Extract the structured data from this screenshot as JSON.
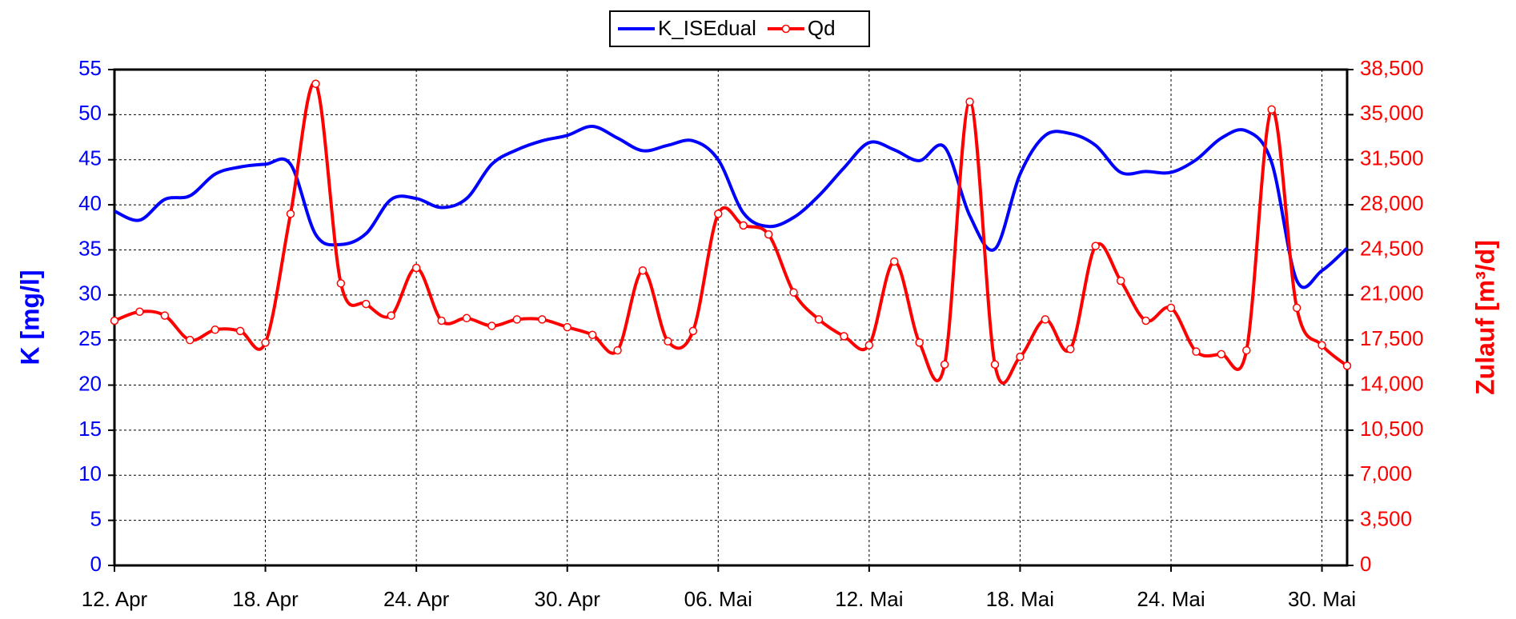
{
  "chart_data": {
    "type": "line",
    "categories": [
      "12. Apr",
      null,
      null,
      null,
      null,
      null,
      "18. Apr",
      null,
      null,
      null,
      null,
      null,
      "24. Apr",
      null,
      null,
      null,
      null,
      null,
      "30. Apr",
      null,
      null,
      null,
      null,
      null,
      "06. Mai",
      null,
      null,
      null,
      null,
      null,
      "12. Mai",
      null,
      null,
      null,
      null,
      null,
      "18. Mai",
      null,
      null,
      null,
      null,
      null,
      "24. Mai",
      null,
      null,
      null,
      null,
      null,
      "30. Mai",
      null
    ],
    "ylabel": "K [mg/l]",
    "y2label": "Zulauf [m³/d]",
    "ylim": [
      0,
      55
    ],
    "yticks": [
      0,
      5,
      10,
      15,
      20,
      25,
      30,
      35,
      40,
      45,
      50,
      55
    ],
    "y2lim": [
      0,
      38500
    ],
    "y2ticks": [
      0,
      {
        "value": 3500,
        "label": "3,500"
      },
      {
        "value": 7000,
        "label": "7,000"
      },
      {
        "value": 10500,
        "label": "10,500"
      },
      {
        "value": 14000,
        "label": "14,000"
      },
      {
        "value": 17500,
        "label": "17,500"
      },
      {
        "value": 21000,
        "label": "21,000"
      },
      {
        "value": 24500,
        "label": "24,500"
      },
      {
        "value": 28000,
        "label": "28,000"
      },
      {
        "value": 31500,
        "label": "31,500"
      },
      {
        "value": 35000,
        "label": "35,000"
      },
      {
        "value": 38500,
        "label": "38,500"
      }
    ],
    "grid": true,
    "legend": "top",
    "series": [
      {
        "name": "K_ISEdual",
        "color": "#0000ff",
        "axis": "y",
        "values": [
          39.3,
          38.3,
          40.6,
          41.0,
          43.4,
          44.2,
          44.5,
          44.5,
          36.7,
          35.6,
          36.8,
          40.6,
          40.7,
          39.7,
          40.7,
          44.5,
          46.1,
          47.1,
          47.7,
          48.7,
          47.4,
          46.0,
          46.6,
          47.1,
          45.0,
          39.1,
          37.6,
          38.6,
          41.0,
          44.1,
          46.9,
          46.1,
          44.9,
          46.4,
          38.8,
          35.1,
          43.4,
          47.7,
          47.9,
          46.6,
          43.6,
          43.7,
          43.6,
          45.0,
          47.4,
          48.2,
          44.7,
          31.6,
          32.7,
          35.2
        ]
      },
      {
        "name": "Qd",
        "color": "#ff0000",
        "axis": "y2",
        "values": [
          19000,
          19700,
          19400,
          17500,
          18300,
          18200,
          17300,
          27300,
          37400,
          21900,
          20300,
          19400,
          23100,
          19000,
          19200,
          18600,
          19100,
          19100,
          18500,
          17900,
          16700,
          22900,
          17400,
          18200,
          27300,
          26400,
          25700,
          21200,
          19100,
          17800,
          17100,
          23600,
          17300,
          15600,
          36000,
          15600,
          16200,
          19100,
          16800,
          24800,
          22100,
          19000,
          20000,
          16600,
          16400,
          16700,
          35400,
          20000,
          17100,
          15500
        ]
      }
    ]
  }
}
